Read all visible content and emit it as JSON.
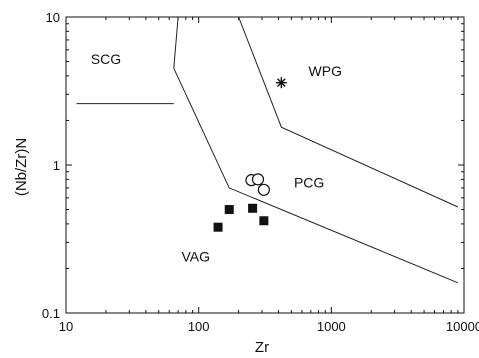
{
  "chart_data": {
    "type": "scatter",
    "xscale": "log",
    "yscale": "log",
    "xlim": [
      10,
      10000
    ],
    "ylim": [
      0.1,
      10
    ],
    "xlabel": "Zr",
    "ylabel": "(Nb/Zr)N",
    "x_ticks": [
      {
        "value": 10,
        "label": "10"
      },
      {
        "value": 100,
        "label": "100"
      },
      {
        "value": 1000,
        "label": "1000"
      },
      {
        "value": 10000,
        "label": "10000"
      }
    ],
    "y_ticks": [
      {
        "value": 0.1,
        "label": "0.1"
      },
      {
        "value": 1,
        "label": "1"
      },
      {
        "value": 10,
        "label": "10"
      }
    ],
    "region_labels": [
      {
        "text": "SCG",
        "x": 20,
        "y": 5.2
      },
      {
        "text": "WPG",
        "x": 900,
        "y": 4.3
      },
      {
        "text": "PCG",
        "x": 680,
        "y": 0.76
      },
      {
        "text": "VAG",
        "x": 95,
        "y": 0.24
      }
    ],
    "boundaries": [
      {
        "name": "scg-left",
        "points": [
          [
            70,
            10
          ],
          [
            65,
            4.5
          ],
          [
            170,
            0.7
          ],
          [
            9000,
            0.16
          ]
        ]
      },
      {
        "name": "scg-bottom",
        "points": [
          [
            12,
            2.6
          ],
          [
            65,
            2.6
          ]
        ]
      },
      {
        "name": "wpg-lower",
        "points": [
          [
            200,
            10
          ],
          [
            420,
            1.8
          ],
          [
            9000,
            0.52
          ]
        ]
      }
    ],
    "series": [
      {
        "marker": "circle-open",
        "points": [
          [
            250,
            0.79
          ],
          [
            280,
            0.8
          ],
          [
            310,
            0.68
          ]
        ]
      },
      {
        "marker": "square-filled",
        "points": [
          [
            140,
            0.38
          ],
          [
            170,
            0.5
          ],
          [
            255,
            0.51
          ],
          [
            310,
            0.42
          ]
        ]
      },
      {
        "marker": "asterisk",
        "points": [
          [
            420,
            3.6
          ]
        ]
      }
    ]
  }
}
